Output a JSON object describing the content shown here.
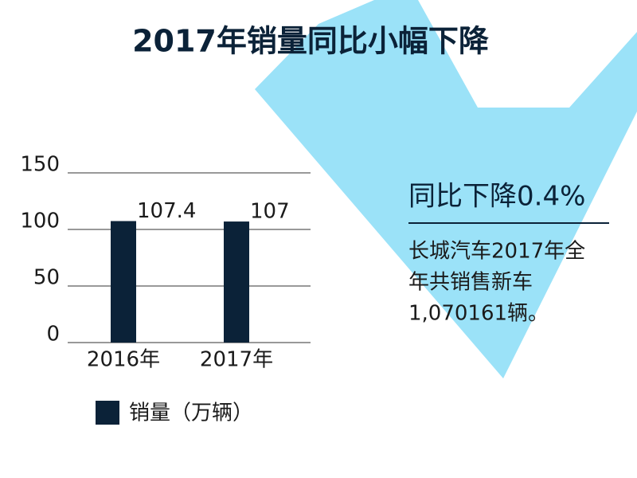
{
  "chart_data": {
    "type": "bar",
    "title": "2017年销量同比小幅下降",
    "categories": [
      "2016年",
      "2017年"
    ],
    "series": [
      {
        "name": "销量（万辆）",
        "color": "#0b2238",
        "values": [
          107.4,
          107
        ]
      }
    ],
    "ylim": [
      0,
      150
    ],
    "yticks": [
      0,
      50,
      100,
      150
    ],
    "grid": true
  },
  "callout": {
    "headline": "同比下降0.4%",
    "lines": [
      "长城汽车2017年全",
      "年共销售新车",
      "1,070161辆。"
    ]
  }
}
